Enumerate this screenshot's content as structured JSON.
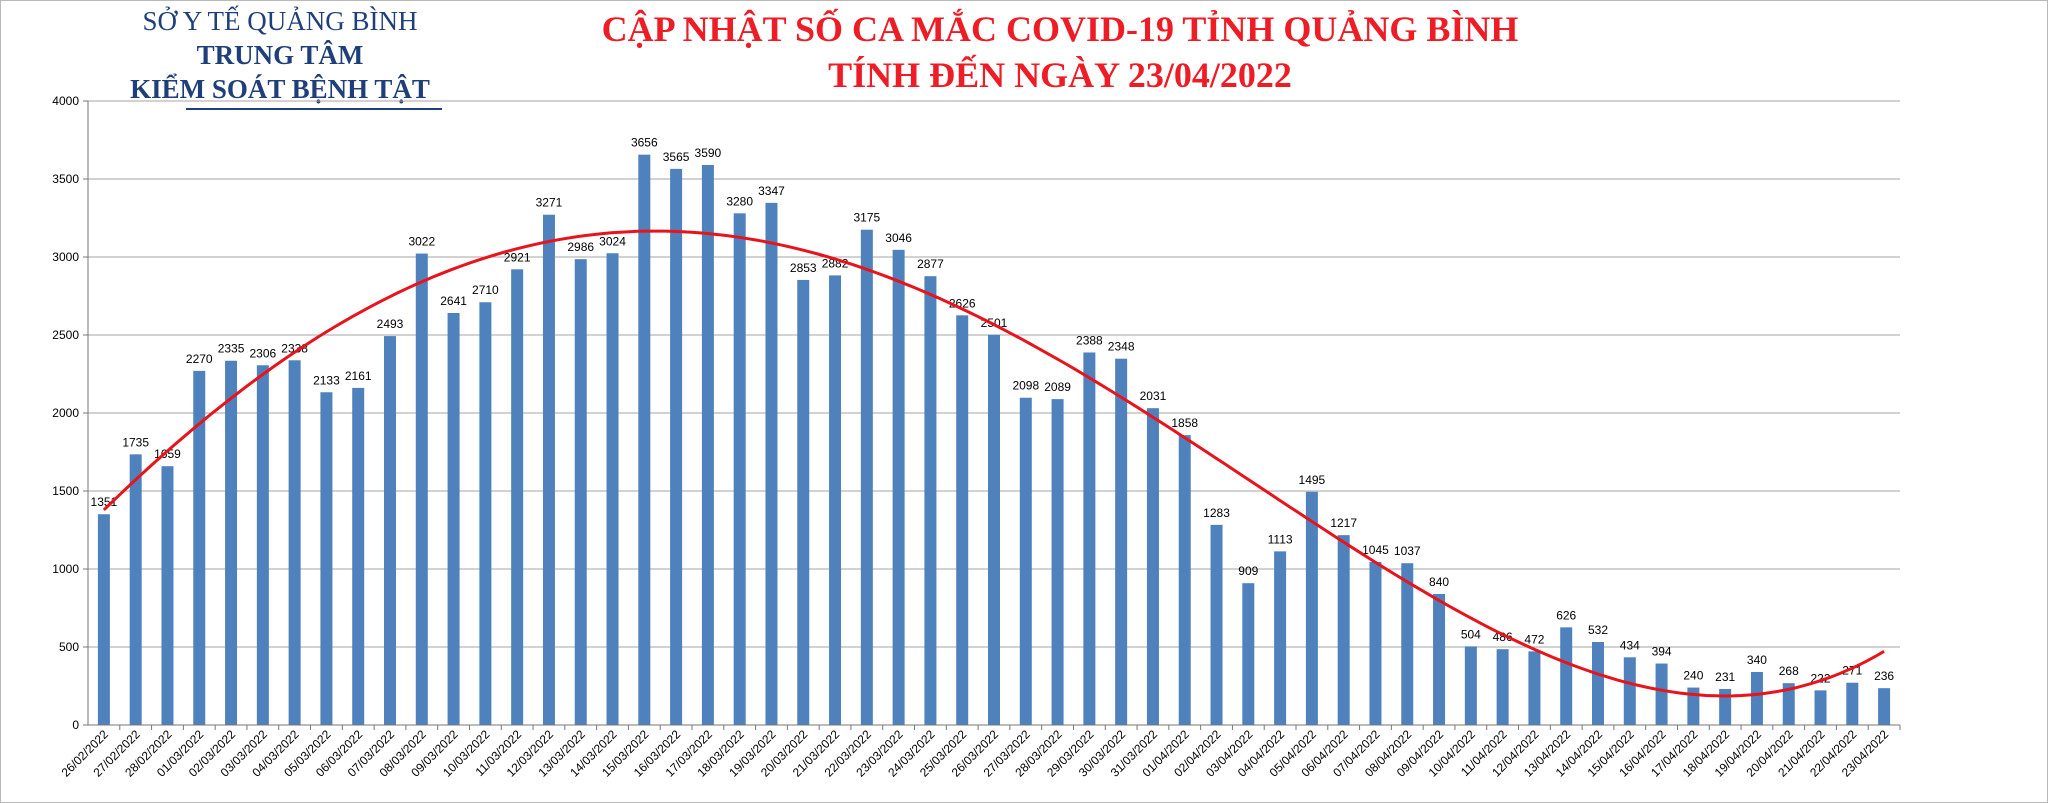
{
  "header": {
    "org_line1": "SỞ Y TẾ QUẢNG BÌNH",
    "org_line2": "TRUNG TÂM",
    "org_line3": "KIỂM SOÁT BỆNH TẬT",
    "title_line1": "CẬP NHẬT SỐ CA MẮC COVID-19 TỈNH QUẢNG BÌNH",
    "title_line2": "TÍNH ĐẾN NGÀY 23/04/2022"
  },
  "colors": {
    "bar": "#4f81bd",
    "trend": "#e8141c",
    "title": "#ee1c25",
    "org": "#1f3f7a",
    "grid": "#a6a6a6"
  },
  "chart_data": {
    "type": "bar",
    "title": "CẬP NHẬT SỐ CA MẮC COVID-19 TỈNH QUẢNG BÌNH TÍNH ĐẾN NGÀY 23/04/2022",
    "xlabel": "",
    "ylabel": "",
    "ylim": [
      0,
      4000
    ],
    "yticks": [
      0,
      500,
      1000,
      1500,
      2000,
      2500,
      3000,
      3500,
      4000
    ],
    "grid": true,
    "legend": "none",
    "trendline": "polynomial",
    "categories": [
      "26/02/2022",
      "27/02/2022",
      "28/02/2022",
      "01/03/2022",
      "02/03/2022",
      "03/03/2022",
      "04/03/2022",
      "05/03/2022",
      "06/03/2022",
      "07/03/2022",
      "08/03/2022",
      "09/03/2022",
      "10/03/2022",
      "11/03/2022",
      "12/03/2022",
      "13/03/2022",
      "14/03/2022",
      "15/03/2022",
      "16/03/2022",
      "17/03/2022",
      "18/03/2022",
      "19/03/2022",
      "20/03/2022",
      "21/03/2022",
      "22/03/2022",
      "23/03/2022",
      "24/03/2022",
      "25/03/2022",
      "26/03/2022",
      "27/03/2022",
      "28/03/2022",
      "29/03/2022",
      "30/03/2022",
      "31/03/2022",
      "01/04/2022",
      "02/04/2022",
      "03/04/2022",
      "04/04/2022",
      "05/04/2022",
      "06/04/2022",
      "07/04/2022",
      "08/04/2022",
      "09/04/2022",
      "10/04/2022",
      "11/04/2022",
      "12/04/2022",
      "13/04/2022",
      "14/04/2022",
      "15/04/2022",
      "16/04/2022",
      "17/04/2022",
      "18/04/2022",
      "19/04/2022",
      "20/04/2022",
      "21/04/2022",
      "22/04/2022",
      "23/04/2022"
    ],
    "values": [
      1351,
      1735,
      1659,
      2270,
      2335,
      2306,
      2338,
      2133,
      2161,
      2493,
      3022,
      2641,
      2710,
      2921,
      3271,
      2986,
      3024,
      3656,
      3565,
      3590,
      3280,
      3347,
      2853,
      2882,
      3175,
      3046,
      2877,
      2626,
      2501,
      2098,
      2089,
      2388,
      2348,
      2031,
      1858,
      1283,
      909,
      1113,
      1495,
      1217,
      1045,
      1037,
      840,
      504,
      486,
      472,
      626,
      532,
      434,
      394,
      240,
      231,
      340,
      268,
      222,
      271,
      236
    ]
  }
}
